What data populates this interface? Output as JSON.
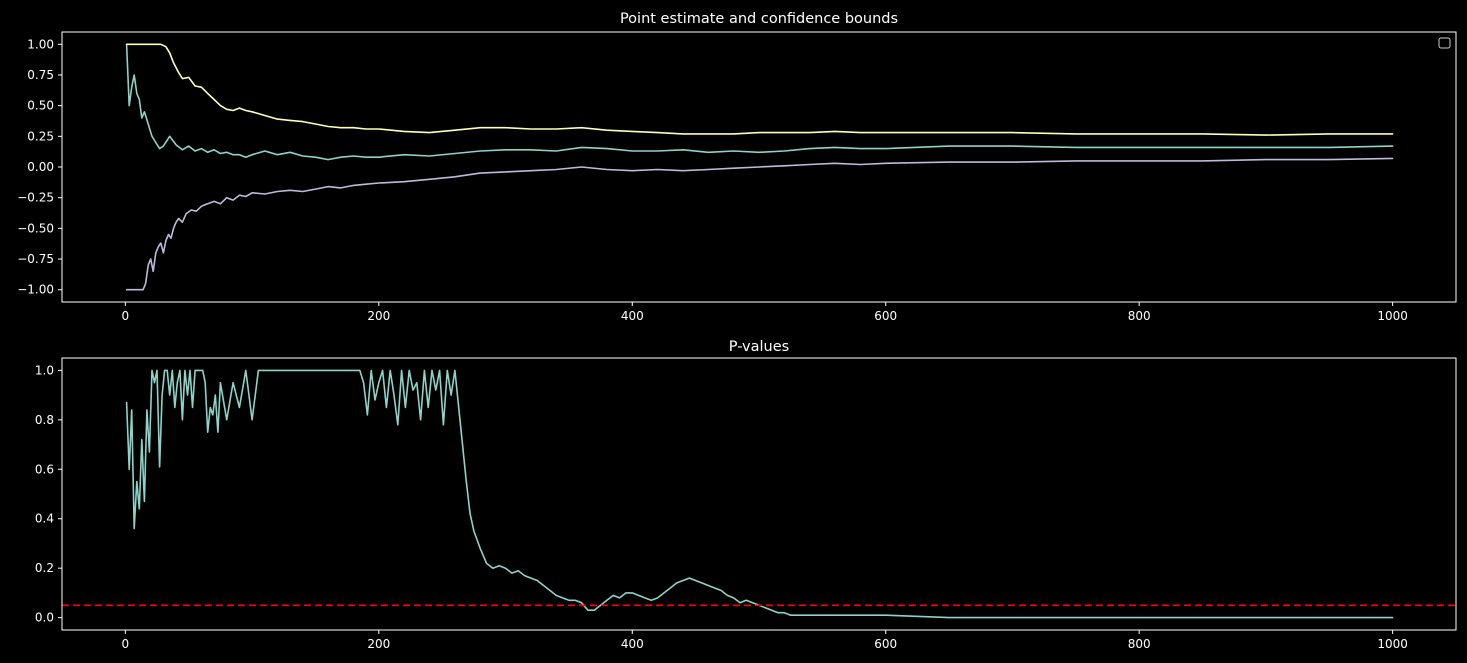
{
  "background": "#000000",
  "chart_data": [
    {
      "type": "line",
      "title": "Point estimate and confidence bounds",
      "xlabel": "",
      "ylabel": "",
      "xlim": [
        -50,
        1050
      ],
      "ylim": [
        -1.1,
        1.1
      ],
      "x_ticks": [
        0,
        200,
        400,
        600,
        800,
        1000
      ],
      "x_tick_labels": [
        "0",
        "200",
        "400",
        "600",
        "800",
        "1000"
      ],
      "y_ticks": [
        -1.0,
        -0.75,
        -0.5,
        -0.25,
        0.0,
        0.25,
        0.5,
        0.75,
        1.0
      ],
      "y_tick_labels": [
        "−1.00",
        "−0.75",
        "−0.50",
        "−0.25",
        "0.00",
        "0.25",
        "0.50",
        "0.75",
        "1.00"
      ],
      "grid": false,
      "legend": "top-right (empty)",
      "series": [
        {
          "color": "#8dd3c7",
          "x": [
            1,
            3,
            5,
            7,
            9,
            11,
            13,
            15,
            18,
            21,
            24,
            27,
            30,
            35,
            40,
            45,
            50,
            55,
            60,
            65,
            70,
            75,
            80,
            85,
            90,
            95,
            100,
            110,
            120,
            130,
            140,
            150,
            160,
            170,
            180,
            190,
            200,
            220,
            240,
            260,
            280,
            300,
            320,
            340,
            360,
            380,
            400,
            420,
            440,
            460,
            480,
            500,
            520,
            540,
            560,
            580,
            600,
            650,
            700,
            750,
            800,
            850,
            900,
            950,
            1000
          ],
          "values": [
            1.0,
            0.5,
            0.65,
            0.75,
            0.6,
            0.55,
            0.4,
            0.45,
            0.35,
            0.25,
            0.2,
            0.15,
            0.17,
            0.25,
            0.18,
            0.14,
            0.17,
            0.13,
            0.15,
            0.12,
            0.14,
            0.11,
            0.12,
            0.1,
            0.1,
            0.08,
            0.1,
            0.13,
            0.1,
            0.12,
            0.09,
            0.08,
            0.06,
            0.08,
            0.09,
            0.08,
            0.08,
            0.1,
            0.09,
            0.11,
            0.13,
            0.14,
            0.14,
            0.13,
            0.16,
            0.15,
            0.13,
            0.13,
            0.14,
            0.12,
            0.13,
            0.12,
            0.13,
            0.15,
            0.16,
            0.15,
            0.15,
            0.17,
            0.17,
            0.16,
            0.16,
            0.16,
            0.16,
            0.16,
            0.17
          ]
        },
        {
          "color": "#ffffb3",
          "x": [
            1,
            10,
            20,
            28,
            32,
            35,
            38,
            42,
            45,
            50,
            55,
            60,
            65,
            70,
            75,
            80,
            85,
            90,
            95,
            100,
            110,
            120,
            130,
            140,
            150,
            160,
            170,
            180,
            190,
            200,
            220,
            240,
            260,
            280,
            300,
            320,
            340,
            360,
            380,
            400,
            420,
            440,
            460,
            480,
            500,
            520,
            540,
            560,
            580,
            600,
            650,
            700,
            750,
            800,
            850,
            900,
            950,
            1000
          ],
          "values": [
            1.0,
            1.0,
            1.0,
            1.0,
            0.98,
            0.93,
            0.85,
            0.77,
            0.72,
            0.73,
            0.66,
            0.65,
            0.6,
            0.55,
            0.5,
            0.47,
            0.46,
            0.48,
            0.46,
            0.45,
            0.42,
            0.39,
            0.38,
            0.37,
            0.35,
            0.33,
            0.32,
            0.32,
            0.31,
            0.31,
            0.29,
            0.28,
            0.3,
            0.32,
            0.32,
            0.31,
            0.31,
            0.32,
            0.3,
            0.29,
            0.28,
            0.27,
            0.27,
            0.27,
            0.28,
            0.28,
            0.28,
            0.29,
            0.28,
            0.28,
            0.28,
            0.28,
            0.27,
            0.27,
            0.27,
            0.26,
            0.27,
            0.27
          ]
        },
        {
          "color": "#bebada",
          "x": [
            1,
            10,
            14,
            16,
            18,
            20,
            22,
            24,
            26,
            28,
            30,
            32,
            34,
            36,
            38,
            40,
            42,
            45,
            48,
            52,
            56,
            60,
            65,
            70,
            75,
            80,
            85,
            90,
            95,
            100,
            110,
            120,
            130,
            140,
            150,
            160,
            170,
            180,
            190,
            200,
            220,
            240,
            260,
            280,
            300,
            320,
            340,
            360,
            380,
            400,
            420,
            440,
            460,
            480,
            500,
            520,
            540,
            560,
            580,
            600,
            650,
            700,
            750,
            800,
            850,
            900,
            950,
            1000
          ],
          "values": [
            -1.0,
            -1.0,
            -1.0,
            -0.95,
            -0.8,
            -0.75,
            -0.85,
            -0.7,
            -0.65,
            -0.62,
            -0.7,
            -0.6,
            -0.55,
            -0.58,
            -0.5,
            -0.45,
            -0.42,
            -0.45,
            -0.38,
            -0.35,
            -0.36,
            -0.32,
            -0.3,
            -0.28,
            -0.3,
            -0.25,
            -0.27,
            -0.23,
            -0.24,
            -0.21,
            -0.22,
            -0.2,
            -0.19,
            -0.2,
            -0.18,
            -0.16,
            -0.17,
            -0.15,
            -0.14,
            -0.13,
            -0.12,
            -0.1,
            -0.08,
            -0.05,
            -0.04,
            -0.03,
            -0.02,
            0.0,
            -0.02,
            -0.03,
            -0.02,
            -0.03,
            -0.02,
            -0.01,
            0.0,
            0.01,
            0.02,
            0.03,
            0.02,
            0.03,
            0.04,
            0.04,
            0.05,
            0.05,
            0.05,
            0.06,
            0.06,
            0.07
          ]
        }
      ]
    },
    {
      "type": "line",
      "title": "P-values",
      "xlabel": "",
      "ylabel": "",
      "xlim": [
        -50,
        1050
      ],
      "ylim": [
        -0.05,
        1.05
      ],
      "x_ticks": [
        0,
        200,
        400,
        600,
        800,
        1000
      ],
      "x_tick_labels": [
        "0",
        "200",
        "400",
        "600",
        "800",
        "1000"
      ],
      "y_ticks": [
        0.0,
        0.2,
        0.4,
        0.6,
        0.8,
        1.0
      ],
      "y_tick_labels": [
        "0.0",
        "0.2",
        "0.4",
        "0.6",
        "0.8",
        "1.0"
      ],
      "grid": false,
      "series": [
        {
          "color": "#8dd3c7",
          "x": [
            1,
            3,
            5,
            7,
            9,
            11,
            13,
            15,
            17,
            19,
            21,
            23,
            25,
            27,
            29,
            31,
            33,
            35,
            37,
            39,
            41,
            43,
            45,
            47,
            49,
            51,
            53,
            55,
            57,
            59,
            61,
            63,
            65,
            67,
            69,
            71,
            73,
            75,
            80,
            85,
            90,
            95,
            100,
            105,
            110,
            115,
            120,
            125,
            130,
            140,
            150,
            160,
            170,
            180,
            185,
            188,
            191,
            194,
            197,
            200,
            203,
            206,
            209,
            212,
            215,
            218,
            221,
            224,
            227,
            230,
            233,
            236,
            239,
            242,
            245,
            248,
            251,
            254,
            257,
            260,
            263,
            266,
            269,
            272,
            275,
            280,
            285,
            290,
            295,
            300,
            305,
            310,
            315,
            320,
            325,
            330,
            335,
            340,
            345,
            350,
            355,
            360,
            365,
            370,
            375,
            380,
            385,
            390,
            395,
            400,
            405,
            410,
            415,
            420,
            425,
            430,
            435,
            440,
            445,
            450,
            455,
            460,
            465,
            470,
            475,
            480,
            485,
            490,
            495,
            500,
            505,
            510,
            515,
            520,
            525,
            530,
            540,
            550,
            560,
            570,
            580,
            590,
            600,
            650,
            700,
            750,
            800,
            850,
            900,
            950,
            1000
          ],
          "values": [
            0.87,
            0.6,
            0.84,
            0.36,
            0.55,
            0.44,
            0.72,
            0.47,
            0.84,
            0.67,
            1.0,
            0.95,
            1.0,
            0.61,
            0.9,
            1.0,
            1.0,
            0.9,
            1.0,
            0.85,
            0.95,
            1.0,
            0.8,
            1.0,
            0.9,
            1.0,
            0.85,
            1.0,
            1.0,
            1.0,
            1.0,
            0.95,
            0.75,
            0.85,
            0.82,
            0.9,
            0.75,
            0.95,
            0.8,
            0.95,
            0.85,
            1.0,
            0.8,
            1.0,
            1.0,
            1.0,
            1.0,
            1.0,
            1.0,
            1.0,
            1.0,
            1.0,
            1.0,
            1.0,
            1.0,
            0.95,
            0.82,
            1.0,
            0.88,
            0.95,
            1.0,
            0.85,
            1.0,
            0.9,
            0.78,
            1.0,
            0.85,
            1.0,
            0.92,
            0.95,
            0.8,
            1.0,
            0.85,
            1.0,
            0.92,
            1.0,
            0.78,
            1.0,
            0.9,
            1.0,
            0.85,
            0.7,
            0.55,
            0.42,
            0.35,
            0.28,
            0.22,
            0.2,
            0.21,
            0.2,
            0.18,
            0.19,
            0.17,
            0.16,
            0.15,
            0.13,
            0.11,
            0.09,
            0.08,
            0.07,
            0.07,
            0.06,
            0.03,
            0.03,
            0.05,
            0.07,
            0.09,
            0.08,
            0.1,
            0.1,
            0.09,
            0.08,
            0.07,
            0.08,
            0.1,
            0.12,
            0.14,
            0.15,
            0.16,
            0.15,
            0.14,
            0.13,
            0.12,
            0.11,
            0.09,
            0.08,
            0.06,
            0.07,
            0.06,
            0.05,
            0.04,
            0.03,
            0.02,
            0.02,
            0.01,
            0.01,
            0.01,
            0.01,
            0.01,
            0.01,
            0.01,
            0.01,
            0.01,
            0.0,
            0.0,
            0.0,
            0.0,
            0.0,
            0.0,
            0.0,
            0.0
          ]
        }
      ],
      "reference_line": {
        "y": 0.05,
        "color": "#ff0000",
        "style": "dashed"
      }
    }
  ]
}
